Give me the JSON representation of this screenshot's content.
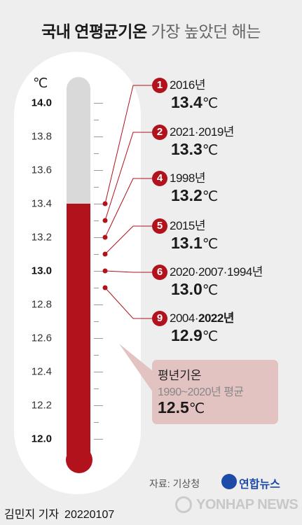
{
  "title": {
    "bold": "국내 연평균기온",
    "light": "가장 높았던 해는"
  },
  "chart_data": {
    "type": "thermometer",
    "unit": "℃",
    "ylim": [
      11.9,
      14.0
    ],
    "ticks": [
      {
        "value": 14.0,
        "label": "14.0",
        "major": true
      },
      {
        "value": 13.8,
        "label": "13.8",
        "major": false
      },
      {
        "value": 13.6,
        "label": "13.6",
        "major": false
      },
      {
        "value": 13.4,
        "label": "13.4",
        "major": false
      },
      {
        "value": 13.2,
        "label": "13.2",
        "major": false
      },
      {
        "value": 13.0,
        "label": "13.0",
        "major": true
      },
      {
        "value": 12.8,
        "label": "12.8",
        "major": false
      },
      {
        "value": 12.6,
        "label": "12.6",
        "major": false
      },
      {
        "value": 12.4,
        "label": "12.4",
        "major": false
      },
      {
        "value": 12.2,
        "label": "12.2",
        "major": false
      },
      {
        "value": 12.0,
        "label": "12.0",
        "major": true
      }
    ],
    "fill_value": 13.4,
    "records": [
      {
        "rank": "1",
        "years": "2016년",
        "years_bold": "",
        "value": 13.4,
        "temp": "13.4"
      },
      {
        "rank": "2",
        "years": "2021·2019년",
        "years_bold": "",
        "value": 13.3,
        "temp": "13.3"
      },
      {
        "rank": "4",
        "years": "1998년",
        "years_bold": "",
        "value": 13.2,
        "temp": "13.2"
      },
      {
        "rank": "5",
        "years": "2015년",
        "years_bold": "",
        "value": 13.1,
        "temp": "13.1"
      },
      {
        "rank": "6",
        "years": "2020·2007·1994년",
        "years_bold": "",
        "value": 13.0,
        "temp": "13.0"
      },
      {
        "rank": "9",
        "years": "2004·",
        "years_bold": "2022년",
        "value": 12.9,
        "temp": "12.9"
      }
    ],
    "normal": {
      "title": "평년기온",
      "period": "1990~2020년 평균",
      "value": 12.5,
      "temp": "12.5"
    }
  },
  "deg_symbol": "℃",
  "source": "자료: 기상청",
  "logo": "연합뉴스",
  "byline": {
    "author": "김민지 기자",
    "date": "20220107"
  },
  "watermark": "YONHAP NEWS",
  "colors": {
    "accent": "#b1121c",
    "background": "#eeeeee",
    "normal_box": "#e3c2c2"
  }
}
